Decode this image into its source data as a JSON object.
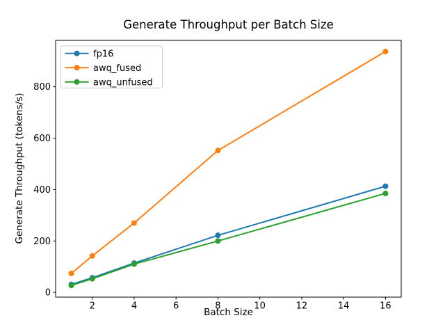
{
  "figure": {
    "title": "Generate Throughput per Batch Size",
    "xlabel": "Batch Size",
    "ylabel": "Generate Throughput (tokens/s)"
  },
  "chart_data": {
    "type": "line",
    "title": "Generate Throughput per Batch Size",
    "xlabel": "Batch Size",
    "ylabel": "Generate Throughput (tokens/s)",
    "x": [
      1,
      2,
      4,
      8,
      16
    ],
    "series": [
      {
        "name": "fp16",
        "color": "#1f77b4",
        "values": [
          31,
          57,
          114,
          222,
          413
        ]
      },
      {
        "name": "awq_fused",
        "color": "#ff7f0e",
        "values": [
          74,
          142,
          270,
          552,
          937
        ]
      },
      {
        "name": "awq_unfused",
        "color": "#2ca02c",
        "values": [
          27,
          53,
          110,
          200,
          385
        ]
      }
    ],
    "xlim": [
      0.25,
      16.75
    ],
    "ylim": [
      -18.4,
      980.4
    ],
    "xticks": [
      2,
      4,
      6,
      8,
      10,
      12,
      14,
      16
    ],
    "yticks": [
      0,
      200,
      400,
      600,
      800
    ],
    "grid": false,
    "legend_position": "upper left",
    "marker": "circle",
    "marker_radius": 4,
    "line_width": 2,
    "background_color": "#ffffff",
    "axis_color": "#000000",
    "legend_border_color": "#cccccc"
  }
}
